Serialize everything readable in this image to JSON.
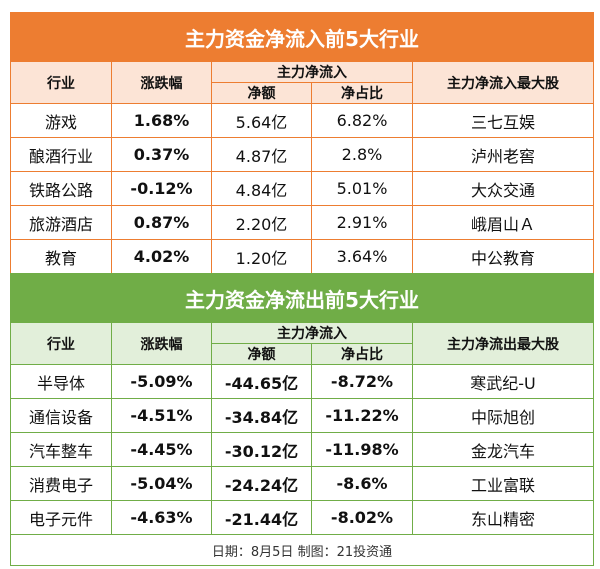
{
  "inflow": {
    "title": "主力资金净流入前5大行业",
    "headers": {
      "industry": "行业",
      "change": "涨跌幅",
      "net_group": "主力净流入",
      "amount": "净额",
      "ratio": "净占比",
      "top_stock": "主力净流入最大股"
    },
    "colors": {
      "title_bg": "#ED7D31",
      "header_bg": "#FCE4D6"
    },
    "rows": [
      {
        "industry": "游戏",
        "change": "1.68%",
        "amount": "5.64亿",
        "ratio": "6.82%",
        "stock": "三七互娱"
      },
      {
        "industry": "酿酒行业",
        "change": "0.37%",
        "amount": "4.87亿",
        "ratio": "2.8%",
        "stock": "泸州老窖"
      },
      {
        "industry": "铁路公路",
        "change": "-0.12%",
        "amount": "4.84亿",
        "ratio": "5.01%",
        "stock": "大众交通"
      },
      {
        "industry": "旅游酒店",
        "change": "0.87%",
        "amount": "2.20亿",
        "ratio": "2.91%",
        "stock": "峨眉山Ａ"
      },
      {
        "industry": "教育",
        "change": "4.02%",
        "amount": "1.20亿",
        "ratio": "3.64%",
        "stock": "中公教育"
      }
    ]
  },
  "outflow": {
    "title": "主力资金净流出前5大行业",
    "headers": {
      "industry": "行业",
      "change": "涨跌幅",
      "net_group": "主力净流入",
      "amount": "净额",
      "ratio": "净占比",
      "top_stock": "主力净流出最大股"
    },
    "colors": {
      "title_bg": "#70AD47",
      "header_bg": "#E2EFDA"
    },
    "rows": [
      {
        "industry": "半导体",
        "change": "-5.09%",
        "amount": "-44.65亿",
        "ratio": "-8.72%",
        "stock": "寒武纪-U"
      },
      {
        "industry": "通信设备",
        "change": "-4.51%",
        "amount": "-34.84亿",
        "ratio": "-11.22%",
        "stock": "中际旭创"
      },
      {
        "industry": "汽车整车",
        "change": "-4.45%",
        "amount": "-30.12亿",
        "ratio": "-11.98%",
        "stock": "金龙汽车"
      },
      {
        "industry": "消费电子",
        "change": "-5.04%",
        "amount": "-24.24亿",
        "ratio": "-8.6%",
        "stock": "工业富联"
      },
      {
        "industry": "电子元件",
        "change": "-4.63%",
        "amount": "-21.44亿",
        "ratio": "-8.02%",
        "stock": "东山精密"
      }
    ]
  },
  "footer": "日期：8月5日 制图：21投资通"
}
